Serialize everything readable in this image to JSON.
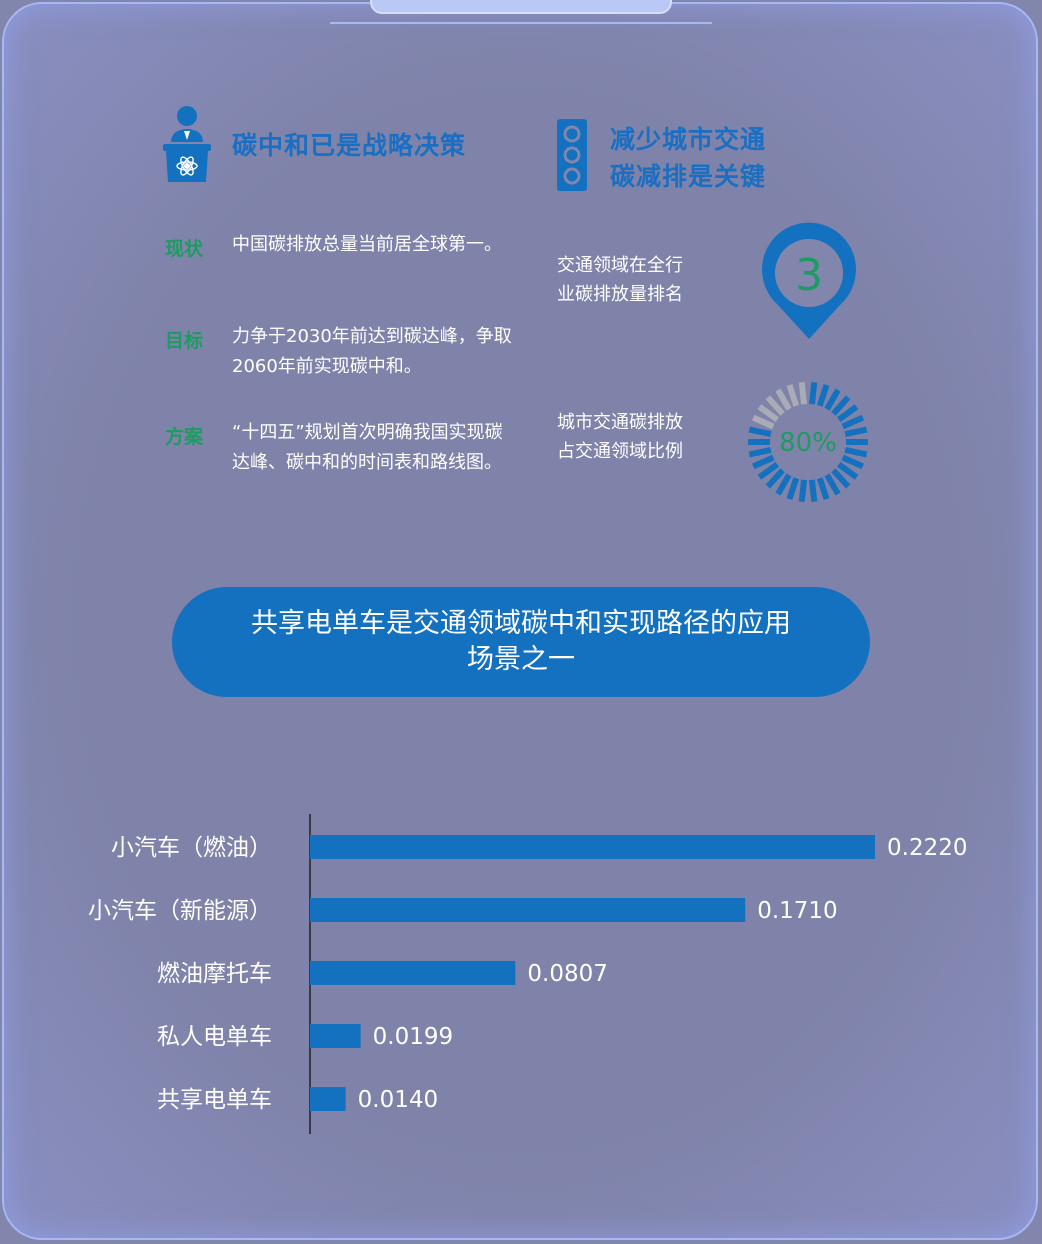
{
  "header": {
    "left_title": "碳中和已是战略决策",
    "right_title_line1": "减少城市交通",
    "right_title_line2": "碳减排是关键"
  },
  "items": [
    {
      "label": "现状",
      "text_line1": "中国碳排放总量当前居全球第一。",
      "text_line2": ""
    },
    {
      "label": "目标",
      "text_line1": "力争于2030年前达到碳达峰，争取",
      "text_line2": "2060年前实现碳中和。"
    },
    {
      "label": "方案",
      "text_line1": "“十四五”规划首次明确我国实现碳",
      "text_line2": "达峰、碳中和的时间表和路线图。"
    }
  ],
  "stats": [
    {
      "text_line1": "交通领域在全行",
      "text_line2": "业碳排放量排名",
      "value": "3"
    },
    {
      "text_line1": "城市交通碳排放",
      "text_line2": "占交通领域比例",
      "value": "80%",
      "fraction": 0.8
    }
  ],
  "banner": {
    "line1": "共享电单车是交通领域碳中和实现路径的应用",
    "line2": "场景之一"
  },
  "colors": {
    "accent": "#1471bf",
    "green": "#1d9b63",
    "ring_inactive": "#a9acb6"
  },
  "chart_data": {
    "type": "bar",
    "orientation": "horizontal",
    "categories": [
      "小汽车（燃油）",
      "小汽车（新能源）",
      "燃油摩托车",
      "私人电单车",
      "共享电单车"
    ],
    "values": [
      0.222,
      0.171,
      0.0807,
      0.0199,
      0.014
    ],
    "value_labels": [
      "0.2220",
      "0.1710",
      "0.0807",
      "0.0199",
      "0.0140"
    ],
    "xlim": [
      0,
      0.222
    ],
    "grid": false,
    "title": "",
    "xlabel": "",
    "ylabel": ""
  }
}
